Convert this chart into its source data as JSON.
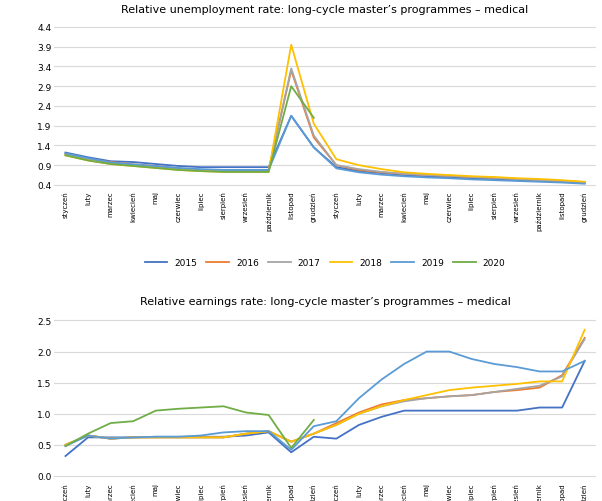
{
  "title1": "Relative unemployment rate: long-cycle master’s programmes – medical",
  "title2": "Relative earnings rate: long-cycle master’s programmes – medical",
  "x_labels": [
    "styczeń",
    "luty",
    "marzec",
    "kwiecień",
    "maj",
    "czerwiec",
    "lipiec",
    "sierpień",
    "wrzesień",
    "październik",
    "listopad",
    "grudzień",
    "styczeń",
    "luty",
    "marzec",
    "kwiecień",
    "maj",
    "czerwiec",
    "lipiec",
    "sierpień",
    "wrzesień",
    "październik",
    "listopad",
    "grudzień"
  ],
  "series_labels": [
    "2015",
    "2016",
    "2017",
    "2018",
    "2019",
    "2020"
  ],
  "colors": [
    "#4472c4",
    "#ed7d31",
    "#a5a5a5",
    "#ffc000",
    "#5b9bd5",
    "#70ad47"
  ],
  "unemployment": {
    "2015": [
      1.22,
      1.1,
      1.0,
      0.98,
      0.93,
      0.88,
      0.85,
      0.85,
      0.85,
      0.85,
      2.15,
      1.35,
      0.85,
      0.75,
      0.7,
      0.65,
      0.62,
      0.6,
      0.57,
      0.55,
      0.52,
      0.5,
      0.48,
      0.45
    ],
    "2016": [
      1.18,
      1.05,
      0.98,
      0.92,
      0.88,
      0.82,
      0.78,
      0.77,
      0.78,
      0.78,
      3.3,
      1.6,
      0.9,
      0.78,
      0.72,
      0.68,
      0.65,
      0.63,
      0.6,
      0.58,
      0.55,
      0.52,
      0.5,
      0.47
    ],
    "2017": [
      1.18,
      1.05,
      0.95,
      0.9,
      0.85,
      0.8,
      0.77,
      0.76,
      0.77,
      0.77,
      3.35,
      1.65,
      0.9,
      0.8,
      0.73,
      0.68,
      0.65,
      0.63,
      0.6,
      0.58,
      0.55,
      0.52,
      0.5,
      0.47
    ],
    "2018": [
      1.15,
      1.02,
      0.93,
      0.88,
      0.83,
      0.78,
      0.75,
      0.73,
      0.73,
      0.73,
      3.95,
      1.95,
      1.05,
      0.9,
      0.8,
      0.72,
      0.68,
      0.65,
      0.62,
      0.6,
      0.57,
      0.55,
      0.52,
      0.48
    ],
    "2019": [
      1.2,
      1.08,
      0.97,
      0.92,
      0.88,
      0.83,
      0.8,
      0.78,
      0.78,
      0.78,
      2.15,
      1.35,
      0.82,
      0.72,
      0.66,
      0.62,
      0.59,
      0.57,
      0.54,
      0.52,
      0.5,
      0.48,
      0.46,
      0.43
    ],
    "2020": [
      1.15,
      1.02,
      0.93,
      0.88,
      0.83,
      0.78,
      0.75,
      0.73,
      0.73,
      0.73,
      2.9,
      2.1,
      null,
      null,
      null,
      null,
      null,
      null,
      null,
      null,
      null,
      null,
      null,
      null
    ]
  },
  "earnings": {
    "2015": [
      0.32,
      0.62,
      0.62,
      0.62,
      0.63,
      0.63,
      0.63,
      0.63,
      0.65,
      0.7,
      0.38,
      0.63,
      0.6,
      0.82,
      0.95,
      1.05,
      1.05,
      1.05,
      1.05,
      1.05,
      1.05,
      1.1,
      1.1,
      1.85
    ],
    "2016": [
      0.5,
      0.65,
      0.6,
      0.62,
      0.62,
      0.62,
      0.62,
      0.62,
      0.68,
      0.72,
      0.55,
      0.68,
      0.85,
      1.02,
      1.15,
      1.22,
      1.25,
      1.28,
      1.3,
      1.35,
      1.38,
      1.42,
      1.62,
      2.22
    ],
    "2017": [
      0.5,
      0.65,
      0.6,
      0.62,
      0.62,
      0.62,
      0.62,
      0.62,
      0.68,
      0.72,
      0.55,
      0.68,
      0.82,
      1.0,
      1.12,
      1.2,
      1.25,
      1.28,
      1.3,
      1.35,
      1.4,
      1.45,
      1.6,
      2.2
    ],
    "2018": [
      0.5,
      0.65,
      0.6,
      0.62,
      0.62,
      0.62,
      0.62,
      0.62,
      0.68,
      0.72,
      0.55,
      0.68,
      0.82,
      1.0,
      1.12,
      1.22,
      1.3,
      1.38,
      1.42,
      1.45,
      1.48,
      1.52,
      1.52,
      2.35
    ],
    "2019": [
      0.48,
      0.65,
      0.6,
      0.62,
      0.63,
      0.63,
      0.65,
      0.7,
      0.72,
      0.72,
      0.42,
      0.8,
      0.88,
      1.25,
      1.55,
      1.8,
      2.0,
      2.0,
      1.88,
      1.8,
      1.75,
      1.68,
      1.68,
      1.85
    ],
    "2020": [
      0.48,
      0.68,
      0.85,
      0.88,
      1.05,
      1.08,
      1.1,
      1.12,
      1.02,
      0.98,
      0.45,
      0.9,
      null,
      null,
      null,
      null,
      null,
      null,
      null,
      null,
      null,
      null,
      null,
      null
    ]
  },
  "unemp_yticks": [
    0.4,
    0.9,
    1.4,
    1.9,
    2.4,
    2.9,
    3.4,
    3.9,
    4.4
  ],
  "earn_yticks": [
    0.0,
    0.5,
    1.0,
    1.5,
    2.0,
    2.5
  ],
  "unemp_ylim": [
    0.3,
    4.6
  ],
  "earn_ylim": [
    -0.08,
    2.65
  ]
}
